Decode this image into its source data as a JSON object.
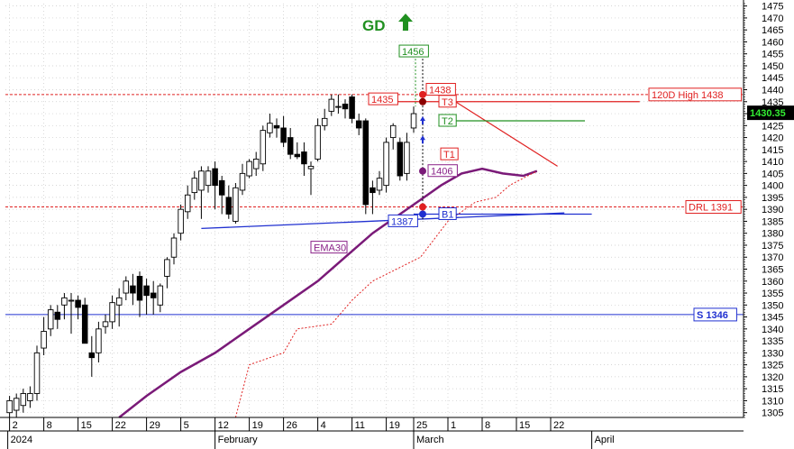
{
  "header": {
    "symbol": "GD",
    "trend_arrow": "up-arrow-icon"
  },
  "colors": {
    "background": "#ffffff",
    "grid": "#c9c9c9",
    "axis": "#000000",
    "bull_candle": "#ffffff",
    "bear_candle": "#000000",
    "ema": "#7a1a78",
    "resistance": "#e02020",
    "support": "#2030d0",
    "target": "#209020",
    "ema_label": "#8a2288",
    "price_box": "#000000",
    "price_text": "#33ee33"
  },
  "chart_data": {
    "type": "candlestick",
    "title": "GD",
    "ylim": [
      1303,
      1476
    ],
    "yticks": [
      1305,
      1310,
      1315,
      1320,
      1325,
      1330,
      1335,
      1340,
      1345,
      1350,
      1355,
      1360,
      1365,
      1370,
      1375,
      1380,
      1385,
      1390,
      1395,
      1400,
      1405,
      1410,
      1415,
      1420,
      1425,
      1430,
      1435,
      1440,
      1445,
      1450,
      1455,
      1460,
      1465,
      1470,
      1475
    ],
    "date_ticks": [
      "2",
      "8",
      "15",
      "22",
      "29",
      "5",
      "12",
      "19",
      "26",
      "4",
      "11",
      "19",
      "25",
      "1",
      "8",
      "15",
      "22"
    ],
    "month_labels": [
      "2024",
      "February",
      "March",
      "April"
    ],
    "grid": true,
    "candles": [
      {
        "o": 1305,
        "h": 1312,
        "l": 1303,
        "c": 1310
      },
      {
        "o": 1306,
        "h": 1313,
        "l": 1303,
        "c": 1311
      },
      {
        "o": 1308,
        "h": 1315,
        "l": 1305,
        "c": 1313
      },
      {
        "o": 1310,
        "h": 1316,
        "l": 1307,
        "c": 1313
      },
      {
        "o": 1313,
        "h": 1333,
        "l": 1310,
        "c": 1330
      },
      {
        "o": 1332,
        "h": 1345,
        "l": 1329,
        "c": 1339
      },
      {
        "o": 1340,
        "h": 1350,
        "l": 1337,
        "c": 1348
      },
      {
        "o": 1347,
        "h": 1350,
        "l": 1340,
        "c": 1344
      },
      {
        "o": 1350,
        "h": 1355,
        "l": 1344,
        "c": 1353
      },
      {
        "o": 1352,
        "h": 1355,
        "l": 1338,
        "c": 1352
      },
      {
        "o": 1352,
        "h": 1354,
        "l": 1344,
        "c": 1349
      },
      {
        "o": 1350,
        "h": 1353,
        "l": 1335,
        "c": 1334
      },
      {
        "o": 1330,
        "h": 1337,
        "l": 1320,
        "c": 1328
      },
      {
        "o": 1330,
        "h": 1343,
        "l": 1326,
        "c": 1340
      },
      {
        "o": 1341,
        "h": 1346,
        "l": 1338,
        "c": 1343
      },
      {
        "o": 1343,
        "h": 1354,
        "l": 1340,
        "c": 1351
      },
      {
        "o": 1350,
        "h": 1357,
        "l": 1341,
        "c": 1353
      },
      {
        "o": 1355,
        "h": 1362,
        "l": 1352,
        "c": 1360
      },
      {
        "o": 1358,
        "h": 1363,
        "l": 1350,
        "c": 1355
      },
      {
        "o": 1362,
        "h": 1364,
        "l": 1345,
        "c": 1352
      },
      {
        "o": 1358,
        "h": 1361,
        "l": 1346,
        "c": 1354
      },
      {
        "o": 1355,
        "h": 1360,
        "l": 1346,
        "c": 1353
      },
      {
        "o": 1350,
        "h": 1359,
        "l": 1347,
        "c": 1358
      },
      {
        "o": 1362,
        "h": 1370,
        "l": 1357,
        "c": 1369
      },
      {
        "o": 1370,
        "h": 1380,
        "l": 1367,
        "c": 1378
      },
      {
        "o": 1380,
        "h": 1392,
        "l": 1377,
        "c": 1390
      },
      {
        "o": 1389,
        "h": 1400,
        "l": 1386,
        "c": 1396
      },
      {
        "o": 1397,
        "h": 1406,
        "l": 1394,
        "c": 1403
      },
      {
        "o": 1398,
        "h": 1408,
        "l": 1386,
        "c": 1406
      },
      {
        "o": 1400,
        "h": 1408,
        "l": 1397,
        "c": 1406
      },
      {
        "o": 1407,
        "h": 1410,
        "l": 1390,
        "c": 1400
      },
      {
        "o": 1402,
        "h": 1404,
        "l": 1388,
        "c": 1396
      },
      {
        "o": 1395,
        "h": 1400,
        "l": 1386,
        "c": 1388
      },
      {
        "o": 1385,
        "h": 1401,
        "l": 1384,
        "c": 1399
      },
      {
        "o": 1398,
        "h": 1409,
        "l": 1396,
        "c": 1405
      },
      {
        "o": 1404,
        "h": 1411,
        "l": 1403,
        "c": 1410
      },
      {
        "o": 1407,
        "h": 1414,
        "l": 1404,
        "c": 1411
      },
      {
        "o": 1409,
        "h": 1425,
        "l": 1406,
        "c": 1423
      },
      {
        "o": 1422,
        "h": 1430,
        "l": 1420,
        "c": 1426
      },
      {
        "o": 1425,
        "h": 1428,
        "l": 1420,
        "c": 1424
      },
      {
        "o": 1424,
        "h": 1429,
        "l": 1416,
        "c": 1418
      },
      {
        "o": 1420,
        "h": 1424,
        "l": 1411,
        "c": 1413
      },
      {
        "o": 1413,
        "h": 1418,
        "l": 1411,
        "c": 1412
      },
      {
        "o": 1414,
        "h": 1418,
        "l": 1404,
        "c": 1409
      },
      {
        "o": 1407,
        "h": 1410,
        "l": 1396,
        "c": 1408
      },
      {
        "o": 1411,
        "h": 1428,
        "l": 1410,
        "c": 1425
      },
      {
        "o": 1425,
        "h": 1432,
        "l": 1423,
        "c": 1428
      },
      {
        "o": 1431,
        "h": 1438,
        "l": 1429,
        "c": 1436
      },
      {
        "o": 1433,
        "h": 1438,
        "l": 1430,
        "c": 1433
      },
      {
        "o": 1434,
        "h": 1436,
        "l": 1428,
        "c": 1432
      },
      {
        "o": 1437,
        "h": 1438,
        "l": 1426,
        "c": 1428
      },
      {
        "o": 1427,
        "h": 1430,
        "l": 1421,
        "c": 1424
      },
      {
        "o": 1427,
        "h": 1428,
        "l": 1388,
        "c": 1392
      },
      {
        "o": 1399,
        "h": 1402,
        "l": 1388,
        "c": 1397
      },
      {
        "o": 1398,
        "h": 1406,
        "l": 1396,
        "c": 1403
      },
      {
        "o": 1400,
        "h": 1420,
        "l": 1397,
        "c": 1418
      },
      {
        "o": 1420,
        "h": 1426,
        "l": 1415,
        "c": 1425
      },
      {
        "o": 1418,
        "h": 1420,
        "l": 1402,
        "c": 1404
      },
      {
        "o": 1405,
        "h": 1422,
        "l": 1402,
        "c": 1418
      },
      {
        "o": 1424,
        "h": 1433,
        "l": 1422,
        "c": 1430
      }
    ],
    "ema30": [
      [
        16,
        1303
      ],
      [
        20,
        1312
      ],
      [
        25,
        1322
      ],
      [
        30,
        1330
      ],
      [
        35,
        1340
      ],
      [
        40,
        1350
      ],
      [
        45,
        1360
      ],
      [
        49,
        1370
      ],
      [
        53,
        1380
      ],
      [
        57,
        1388
      ],
      [
        60,
        1394
      ],
      [
        63,
        1400
      ],
      [
        66,
        1405
      ],
      [
        69,
        1407
      ],
      [
        72,
        1405
      ],
      [
        75,
        1404
      ],
      [
        77,
        1406
      ]
    ],
    "stop_line": [
      [
        33,
        1303
      ],
      [
        35,
        1325
      ],
      [
        40,
        1330
      ],
      [
        42,
        1340
      ],
      [
        47,
        1342
      ],
      [
        50,
        1352
      ],
      [
        53,
        1360
      ],
      [
        60,
        1370
      ],
      [
        64,
        1385
      ],
      [
        68,
        1393
      ],
      [
        71,
        1395
      ],
      [
        73,
        1400
      ],
      [
        77,
        1406
      ]
    ],
    "support_trendline": [
      [
        28,
        1382
      ],
      [
        81,
        1388.5
      ]
    ],
    "resistance_trendline": [
      [
        64,
        1437
      ],
      [
        80,
        1408
      ]
    ],
    "lines": [
      {
        "label": "120D High 1438",
        "value": 1438,
        "style": "dashed",
        "color": "#e02020"
      },
      {
        "label": "DRL 1391",
        "value": 1391,
        "style": "dashed",
        "color": "#e02020"
      },
      {
        "label": "S 1346",
        "value": 1346,
        "style": "solid",
        "color": "#2030d0"
      }
    ],
    "targets": [
      {
        "label": "T3",
        "value": 1435,
        "color": "#e02020"
      },
      {
        "label": "T2",
        "value": 1427,
        "color": "#209020"
      },
      {
        "label": "T1",
        "value": 1413,
        "color": "#e02020"
      },
      {
        "label": "B1",
        "value": 1388,
        "color": "#2030d0"
      }
    ],
    "callouts": [
      {
        "text": "1456",
        "value": 1456,
        "color": "#209020"
      },
      {
        "text": "1438",
        "value": 1438,
        "color": "#e02020"
      },
      {
        "text": "1435",
        "value": 1435,
        "color": "#e02020"
      },
      {
        "text": "1406",
        "value": 1406,
        "color": "#8a2288"
      },
      {
        "text": "1387",
        "value": 1387,
        "color": "#2030d0"
      }
    ],
    "ema_label": "EMA30",
    "last_price": "1430.35"
  }
}
